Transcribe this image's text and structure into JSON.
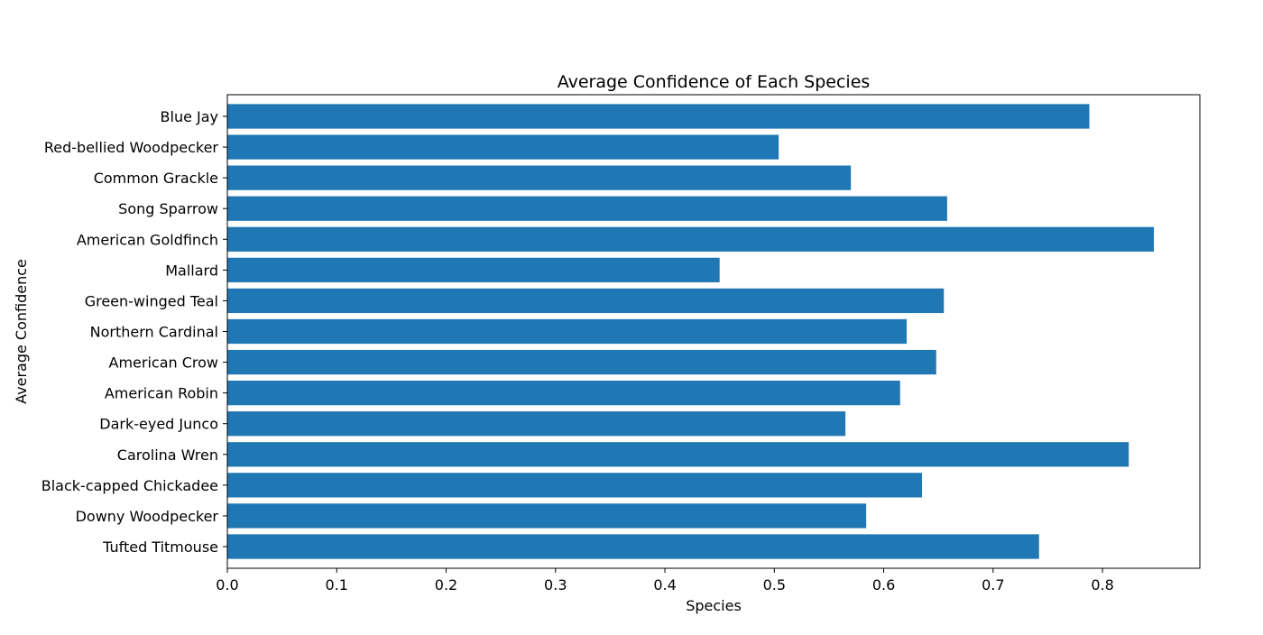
{
  "chart_data": {
    "type": "bar",
    "orientation": "horizontal",
    "title": "Average Confidence of Each Species",
    "xlabel": "Species",
    "ylabel": "Average Confidence",
    "categories": [
      "Blue Jay",
      "Red-bellied Woodpecker",
      "Common Grackle",
      "Song Sparrow",
      "American Goldfinch",
      "Mallard",
      "Green-winged Teal",
      "Northern Cardinal",
      "American Crow",
      "American Robin",
      "Dark-eyed Junco",
      "Carolina Wren",
      "Black-capped Chickadee",
      "Downy Woodpecker",
      "Tufted Titmouse"
    ],
    "values": [
      0.788,
      0.504,
      0.57,
      0.658,
      0.847,
      0.45,
      0.655,
      0.621,
      0.648,
      0.615,
      0.565,
      0.824,
      0.635,
      0.584,
      0.742
    ],
    "xlim": [
      0,
      0.889
    ],
    "xticks": [
      0.0,
      0.1,
      0.2,
      0.3,
      0.4,
      0.5,
      0.6,
      0.7,
      0.8
    ],
    "xtick_labels": [
      "0.0",
      "0.1",
      "0.2",
      "0.3",
      "0.4",
      "0.5",
      "0.6",
      "0.7",
      "0.8"
    ],
    "grid": false,
    "legend": "none",
    "colors": {
      "bar": "#1f77b4",
      "axis": "#000000",
      "background": "#ffffff"
    }
  }
}
